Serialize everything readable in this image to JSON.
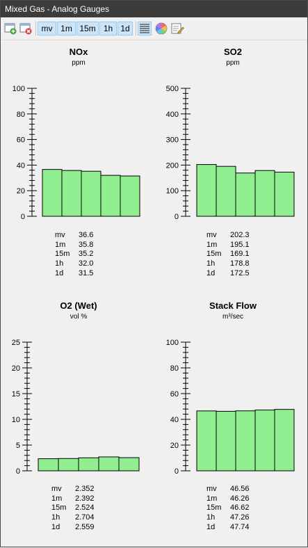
{
  "window": {
    "title": "Mixed Gas - Analog Gauges"
  },
  "toolbar": {
    "intervals": [
      "mv",
      "1m",
      "15m",
      "1h",
      "1d"
    ],
    "icons": [
      "add-gauge-icon",
      "remove-gauge-icon",
      "list-view-icon",
      "color-wheel-icon",
      "edit-note-icon"
    ]
  },
  "gauges": [
    {
      "title": "NOx",
      "unit": "ppm",
      "ticks": [
        "0",
        "20",
        "40",
        "60",
        "80",
        "100"
      ],
      "max": 100,
      "labels": [
        "mv",
        "1m",
        "15m",
        "1h",
        "1d"
      ],
      "values": [
        "36.6",
        "35.8",
        "35.2",
        "32.0",
        "31.5"
      ],
      "bar_color": "#90ee90"
    },
    {
      "title": "SO2",
      "unit": "ppm",
      "ticks": [
        "0",
        "100",
        "200",
        "300",
        "400",
        "500"
      ],
      "max": 500,
      "labels": [
        "mv",
        "1m",
        "15m",
        "1h",
        "1d"
      ],
      "values": [
        "202.3",
        "195.1",
        "169.1",
        "178.8",
        "172.5"
      ],
      "bar_color": "#90ee90"
    },
    {
      "title": "O2 (Wet)",
      "unit": "vol %",
      "ticks": [
        "0",
        "5",
        "10",
        "15",
        "20",
        "25"
      ],
      "max": 25,
      "labels": [
        "mv",
        "1m",
        "15m",
        "1h",
        "1d"
      ],
      "values": [
        "2.352",
        "2.392",
        "2.524",
        "2.704",
        "2.559"
      ],
      "bar_color": "#90ee90"
    },
    {
      "title": "Stack Flow",
      "unit": "m³/sec",
      "ticks": [
        "0",
        "20",
        "40",
        "60",
        "80",
        "100"
      ],
      "max": 100,
      "labels": [
        "mv",
        "1m",
        "15m",
        "1h",
        "1d"
      ],
      "values": [
        "46.56",
        "46.26",
        "46.62",
        "47.26",
        "47.74"
      ],
      "bar_color": "#90ee90"
    }
  ]
}
